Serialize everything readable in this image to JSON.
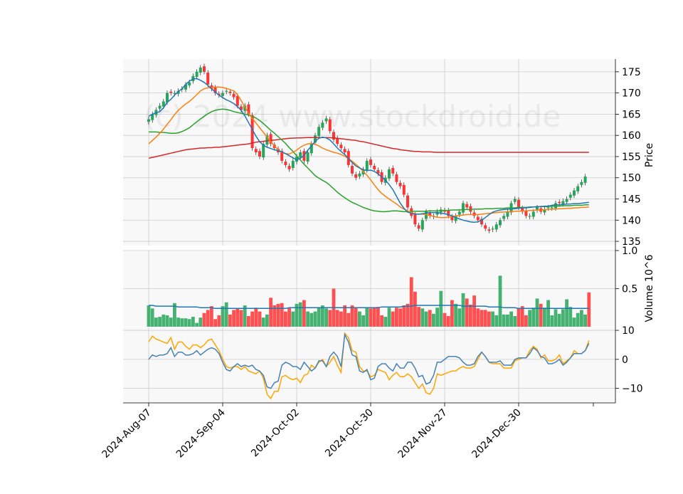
{
  "watermark": "(c) 2024 www.stockdroid.de",
  "chart_data": {
    "type": "candlestick",
    "colors": {
      "up": "#26a65b",
      "down": "#ff3333",
      "sma_short": "#1f77b4",
      "sma_mid": "#ff7f0e",
      "sma_long": "#2ca02c",
      "sma_200": "#d62728",
      "vol_ma": "#1f77b4",
      "osc_a": "#4682b4",
      "osc_b": "#ffa500",
      "panel_bg": "#f8f8f8",
      "grid": "#cccccc"
    },
    "x_tick_labels": [
      "2024-Aug-07",
      "2024-Sep-04",
      "2024-Oct-02",
      "2024-Oct-30",
      "2024-Nov-27",
      "2024-Dec-30"
    ],
    "x_tick_index": [
      0,
      20,
      40,
      60,
      80,
      100
    ],
    "n_bars": 120,
    "price_panel": {
      "ylabel": "Price",
      "ylim": [
        134,
        178
      ],
      "yticks": [
        135,
        140,
        145,
        150,
        155,
        160,
        165,
        170,
        175
      ],
      "close": [
        163.8,
        165,
        166,
        167,
        168,
        170,
        170,
        170,
        170.5,
        171,
        172,
        172.5,
        174,
        175,
        176,
        175,
        172,
        171,
        170,
        169.5,
        170,
        170.5,
        170,
        169,
        167,
        166,
        167,
        165,
        157,
        156,
        155,
        158,
        160,
        158,
        157,
        156,
        154,
        153,
        152,
        154,
        155,
        156,
        154,
        156,
        158,
        160,
        162,
        163,
        164,
        161,
        159,
        158,
        157,
        156,
        153,
        151,
        150,
        151,
        152,
        154,
        153,
        152,
        151,
        149,
        150,
        152,
        151,
        149,
        148,
        146,
        143,
        141,
        139,
        138,
        140,
        142,
        141,
        141,
        142,
        142.5,
        142,
        141,
        140,
        141,
        142,
        144,
        143,
        142,
        141,
        140,
        139,
        138,
        137.5,
        138,
        139,
        140,
        141,
        142,
        144,
        145,
        143,
        142,
        141,
        141,
        142,
        143,
        142,
        142.5,
        143,
        143,
        144,
        144,
        144.5,
        145,
        146,
        147,
        148,
        149,
        150.3
      ],
      "sma_short": [
        164.5,
        165,
        165.3,
        165.6,
        166.5,
        167.8,
        168.5,
        169.5,
        170.3,
        171,
        172,
        172.8,
        173.3,
        173.4,
        173,
        172.5,
        171.8,
        171,
        170.2,
        169.5,
        168.9,
        168.4,
        168,
        167.5,
        166.8,
        165.9,
        164.6,
        163,
        161.4,
        159.8,
        158.5,
        157.7,
        157.2,
        156.9,
        156.6,
        156.4,
        156.1,
        155.7,
        155.2,
        154.7,
        154.2,
        154.6,
        155.3,
        156.5,
        157.5,
        158.6,
        159.3,
        159.6,
        159.4,
        158.9,
        158,
        157,
        156.2,
        155.5,
        154.5,
        153.6,
        152.8,
        152.3,
        151.9,
        151.7,
        151.8,
        151.5,
        150.9,
        150.2,
        149.4,
        148.4,
        147.2,
        145.6,
        144,
        142.8,
        141.9,
        141.6,
        141.4,
        141.4,
        141.5,
        141.7,
        141.8,
        141.8,
        141.8,
        141.6,
        141.5,
        141.3,
        141,
        140.6,
        140.3,
        140,
        139.8,
        139.6,
        139.5,
        139.6,
        140,
        140.6,
        141.3,
        141.9,
        142.2,
        142.4,
        142.5,
        142.6,
        142.6,
        142.7,
        142.8,
        142.9,
        142.9,
        143,
        143.1,
        143.2,
        143.2,
        143.3,
        143.3,
        143.5,
        143.6,
        143.6,
        143.7,
        143.8,
        143.8,
        143.9,
        143.9,
        144,
        144.1,
        144.2
      ],
      "sma_mid": [
        158,
        158.8,
        159.6,
        160.5,
        161.5,
        162.6,
        163.7,
        164.9,
        165.9,
        166.7,
        167.4,
        168,
        168.8,
        169.6,
        170.5,
        171,
        171.2,
        171.3,
        171.4,
        171.4,
        171.3,
        171.1,
        170.8,
        170.5,
        169.6,
        168.2,
        166.7,
        165.2,
        164,
        162.9,
        161.8,
        160.7,
        159.6,
        158.5,
        157.5,
        156.6,
        156,
        155.7,
        155.6,
        156,
        156.5,
        157.2,
        157.7,
        158,
        158.1,
        157.9,
        157.5,
        157,
        156.6,
        156.3,
        156,
        155.8,
        155.5,
        155.1,
        154.5,
        153.9,
        153.2,
        152.4,
        151.5,
        150.6,
        149.5,
        148.3,
        147.2,
        146.3,
        145.6,
        145,
        144.4,
        143.8,
        143.1,
        142.6,
        142.2,
        141.8,
        141.5,
        141.4,
        141.4,
        141.3,
        141.1,
        140.9,
        140.7,
        140.6,
        140.6,
        140.7,
        140.9,
        141,
        141.1,
        141.2,
        141.3,
        141.3,
        141.3,
        141.3,
        141.4,
        141.5,
        141.6,
        141.7,
        141.8,
        141.9,
        141.9,
        142,
        142,
        142.1,
        142.1,
        142.2,
        142.2,
        142.3,
        142.3,
        142.4,
        142.4,
        142.5,
        142.5,
        142.6,
        142.6,
        142.7,
        142.7,
        142.8,
        142.8,
        142.9,
        142.9,
        143,
        143,
        143.1
      ],
      "sma_long": [
        160.8,
        160.8,
        160.8,
        160.7,
        160.7,
        160.6,
        160.5,
        160.5,
        160.6,
        160.9,
        161.3,
        161.8,
        162.5,
        163.2,
        163.9,
        164.5,
        165.1,
        165.6,
        165.9,
        166.1,
        166.2,
        166.1,
        165.9,
        165.6,
        165.4,
        165.2,
        165,
        164.8,
        164.5,
        164.1,
        163.5,
        162.8,
        162,
        161.2,
        160.5,
        159.7,
        158.9,
        158.1,
        157.1,
        156.2,
        155.2,
        154.2,
        153.2,
        152.3,
        151.4,
        150.5,
        149.9,
        149.4,
        148.9,
        148.2,
        147.4,
        146.6,
        145.9,
        145.3,
        144.7,
        144.2,
        143.8,
        143.4,
        143,
        142.7,
        142.4,
        142.2,
        142.1,
        142,
        142,
        142.1,
        142.2,
        142.2,
        142.1,
        142,
        142,
        142.1,
        142.1,
        142.1,
        142.1,
        142.1,
        142.2,
        142.2,
        142.2,
        142.3,
        142.3,
        142.3,
        142.4,
        142.4,
        142.4,
        142.5,
        142.5,
        142.5,
        142.6,
        142.6,
        142.6,
        142.7,
        142.7,
        142.7,
        142.8,
        142.8,
        142.8,
        142.9,
        142.9,
        142.9,
        143,
        143,
        143,
        143.1,
        143.1,
        143.1,
        143.2,
        143.2,
        143.2,
        143.3,
        143.3,
        143.3,
        143.4,
        143.4,
        143.4,
        143.5,
        143.5,
        143.5,
        143.6,
        143.6
      ],
      "sma_200": [
        154.6,
        154.8,
        155,
        155.2,
        155.4,
        155.6,
        155.8,
        156,
        156.2,
        156.4,
        156.6,
        156.7,
        156.8,
        156.9,
        157,
        157,
        157.1,
        157.1,
        157.2,
        157.2,
        157.3,
        157.4,
        157.5,
        157.6,
        157.7,
        157.8,
        157.9,
        158,
        158.2,
        158.4,
        158.5,
        158.6,
        158.7,
        158.8,
        158.9,
        159,
        159.1,
        159.2,
        159.3,
        159.35,
        159.4,
        159.4,
        159.45,
        159.5,
        159.5,
        159.5,
        159.5,
        159.5,
        159.5,
        159.45,
        159.4,
        159.3,
        159.2,
        159.1,
        159,
        158.9,
        158.8,
        158.6,
        158.5,
        158.3,
        158.1,
        157.9,
        157.7,
        157.5,
        157.3,
        157.1,
        156.9,
        156.8,
        156.6,
        156.5,
        156.4,
        156.3,
        156.2,
        156.2,
        156.1,
        156.1,
        156.1,
        156.05,
        156,
        156,
        156,
        156,
        156,
        156,
        156,
        156,
        156,
        156,
        156,
        156,
        156,
        156,
        156,
        156,
        156,
        156,
        156,
        156,
        156,
        156,
        156,
        156,
        156,
        156,
        156,
        156,
        156,
        156,
        156,
        156,
        156,
        156,
        156,
        156,
        156,
        156,
        156,
        156,
        156,
        156
      ]
    },
    "volume_panel": {
      "ylabel": "Volume  10^6",
      "ylim": [
        0,
        1.0
      ],
      "yticks": [
        0.5,
        1.0
      ],
      "ytick_labels": [
        "0.5",
        "1.0"
      ],
      "values": [
        0.28,
        0.24,
        0.12,
        0.13,
        0.16,
        0.15,
        0.12,
        0.31,
        0.12,
        0.11,
        0.11,
        0.1,
        0.13,
        0.05,
        0.12,
        0.18,
        0.22,
        0.27,
        0.1,
        0.15,
        0.27,
        0.32,
        0.16,
        0.22,
        0.24,
        0.22,
        0.28,
        0.14,
        0.2,
        0.25,
        0.2,
        0.12,
        0.16,
        0.38,
        0.28,
        0.3,
        0.31,
        0.2,
        0.25,
        0.2,
        0.3,
        0.32,
        0.35,
        0.2,
        0.18,
        0.2,
        0.25,
        0.28,
        0.24,
        0.22,
        0.5,
        0.22,
        0.2,
        0.28,
        0.18,
        0.28,
        0.25,
        0.2,
        0.15,
        0.25,
        0.24,
        0.25,
        0.26,
        0.15,
        0.13,
        0.25,
        0.2,
        0.25,
        0.24,
        0.28,
        0.3,
        0.65,
        0.46,
        0.26,
        0.24,
        0.2,
        0.22,
        0.17,
        0.25,
        0.47,
        0.18,
        0.14,
        0.35,
        0.3,
        0.24,
        0.44,
        0.37,
        0.29,
        0.41,
        0.24,
        0.22,
        0.22,
        0.2,
        0.2,
        0.15,
        0.67,
        0.16,
        0.16,
        0.2,
        0.14,
        0.24,
        0.27,
        0.15,
        0.22,
        0.25,
        0.37,
        0.3,
        0.25,
        0.35,
        0.15,
        0.23,
        0.17,
        0.23,
        0.36,
        0.26,
        0.12,
        0.18,
        0.22,
        0.16,
        0.45
      ],
      "ma": [
        0.28,
        0.28,
        0.27,
        0.27,
        0.27,
        0.27,
        0.27,
        0.27,
        0.26,
        0.26,
        0.26,
        0.26,
        0.26,
        0.26,
        0.25,
        0.25,
        0.25,
        0.25,
        0.24,
        0.24,
        0.24,
        0.24,
        0.24,
        0.24,
        0.24,
        0.24,
        0.24,
        0.24,
        0.24,
        0.24,
        0.24,
        0.24,
        0.24,
        0.24,
        0.24,
        0.24,
        0.24,
        0.24,
        0.25,
        0.25,
        0.25,
        0.25,
        0.25,
        0.25,
        0.25,
        0.25,
        0.25,
        0.25,
        0.25,
        0.25,
        0.25,
        0.25,
        0.25,
        0.25,
        0.25,
        0.25,
        0.25,
        0.25,
        0.25,
        0.25,
        0.25,
        0.25,
        0.25,
        0.26,
        0.26,
        0.26,
        0.26,
        0.26,
        0.26,
        0.27,
        0.27,
        0.27,
        0.28,
        0.28,
        0.28,
        0.28,
        0.28,
        0.28,
        0.28,
        0.28,
        0.28,
        0.28,
        0.28,
        0.28,
        0.28,
        0.27,
        0.27,
        0.27,
        0.27,
        0.27,
        0.27,
        0.27,
        0.26,
        0.26,
        0.26,
        0.26,
        0.25,
        0.25,
        0.25,
        0.25,
        0.24,
        0.24,
        0.24,
        0.24,
        0.24,
        0.24,
        0.24,
        0.24,
        0.24,
        0.24,
        0.24,
        0.24,
        0.24,
        0.24,
        0.24,
        0.24,
        0.24,
        0.24,
        0.24,
        0.24
      ]
    },
    "osc_panel": {
      "ylim": [
        -15,
        11
      ],
      "yticks": [
        10,
        0,
        -10
      ],
      "ytick_labels": [
        "10",
        "0",
        "−10"
      ],
      "series_a": [
        0,
        1.5,
        1,
        1.5,
        1.5,
        2,
        4,
        1,
        2.5,
        2.5,
        1.5,
        1.5,
        2,
        3,
        1.5,
        2.5,
        3.5,
        4,
        3.5,
        2,
        -1,
        -3.5,
        -4,
        -2.5,
        -1.5,
        -2.5,
        -2,
        -2.5,
        -2,
        -3.5,
        -4,
        -5.5,
        -9.5,
        -10,
        -8,
        -7.5,
        -2,
        -1,
        -1.5,
        -2.5,
        -2.5,
        -3.5,
        -1,
        -2.5,
        -4,
        -3,
        -0.5,
        -0.5,
        -2.5,
        1,
        2.5,
        1,
        -2.5,
        8.5,
        6,
        1.5,
        1,
        -4,
        -4.5,
        -3.5,
        -7,
        -6.5,
        -2.5,
        -1.5,
        -1.5,
        -3,
        -4,
        -1.5,
        -3,
        -3,
        -1,
        -1,
        -3,
        -6,
        -5.5,
        -8.5,
        -8,
        -5.5,
        -1,
        -1,
        0,
        1,
        1,
        1,
        0.5,
        -1,
        -2,
        -2,
        -1.5,
        1,
        2.5,
        1,
        -1,
        -1,
        -1,
        -0.5,
        -2,
        -2,
        -2,
        0,
        0.5,
        0.5,
        0.5,
        2,
        4,
        3,
        1,
        0.5,
        -1.5,
        -1.5,
        -1,
        0,
        -2,
        -1,
        0.5,
        2,
        2,
        2,
        3,
        5.5
      ],
      "series_b": [
        6,
        8,
        7,
        6.5,
        6,
        5.5,
        7.5,
        3.5,
        6,
        6,
        4.5,
        3.5,
        5,
        5,
        4,
        5,
        6.5,
        7,
        5,
        3,
        0,
        -2.5,
        -3,
        -2.5,
        -2.5,
        -3.5,
        -2.5,
        -4,
        -4.5,
        -5,
        -4,
        -6.5,
        -12,
        -13.5,
        -11,
        -11,
        -6,
        -5.5,
        -6.5,
        -7,
        -6.5,
        -8,
        -5.5,
        -5,
        -2,
        -3,
        -1,
        0,
        -2.5,
        -1,
        1,
        -2,
        -4.5,
        9,
        7.5,
        3,
        2.5,
        -2.5,
        -4,
        -4,
        -6,
        -5.5,
        -3.5,
        -4,
        -4.5,
        -7,
        -5.5,
        -4.5,
        -6,
        -6,
        -5,
        -6,
        -8,
        -10,
        -8.5,
        -11.5,
        -12,
        -10,
        -5,
        -5.5,
        -5,
        -4.5,
        -4,
        -4,
        -3,
        -2.5,
        -3,
        -3,
        -2.5,
        0,
        2.5,
        1,
        -1,
        -1.5,
        -1.5,
        -1.5,
        -3,
        -3,
        -3,
        -0.5,
        0,
        0.5,
        0.5,
        3,
        4.5,
        3.5,
        0.5,
        1.5,
        -0.5,
        -0.5,
        0,
        1.5,
        -1.5,
        -0.5,
        0.5,
        3,
        2,
        2,
        3,
        6.5
      ]
    }
  }
}
